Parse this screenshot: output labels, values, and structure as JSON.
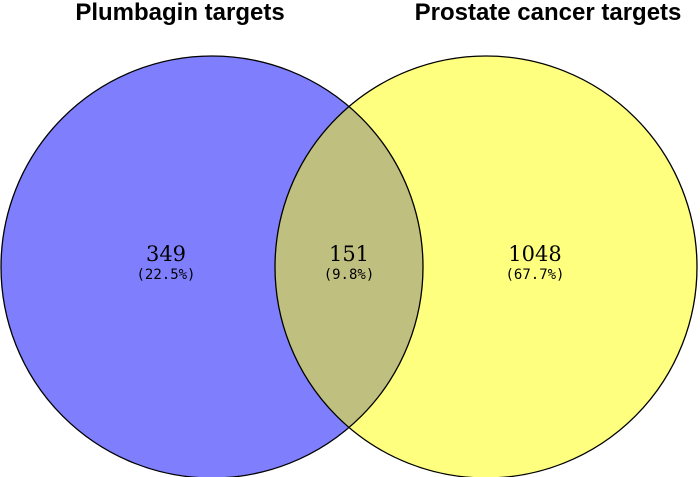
{
  "sets": {
    "left": {
      "title": "Plumbagin targets",
      "color": "#7f7ffe"
    },
    "right": {
      "title": "Prostate cancer targets",
      "color": "#fefe7f"
    },
    "overlap_color": "#bfbf7f",
    "outline_color": "#000000"
  },
  "regions": {
    "left_only": {
      "count": "349",
      "percent": "(22.5%)"
    },
    "intersection": {
      "count": "151",
      "percent": "(9.8%)"
    },
    "right_only": {
      "count": "1048",
      "percent": "(67.7%)"
    }
  }
}
